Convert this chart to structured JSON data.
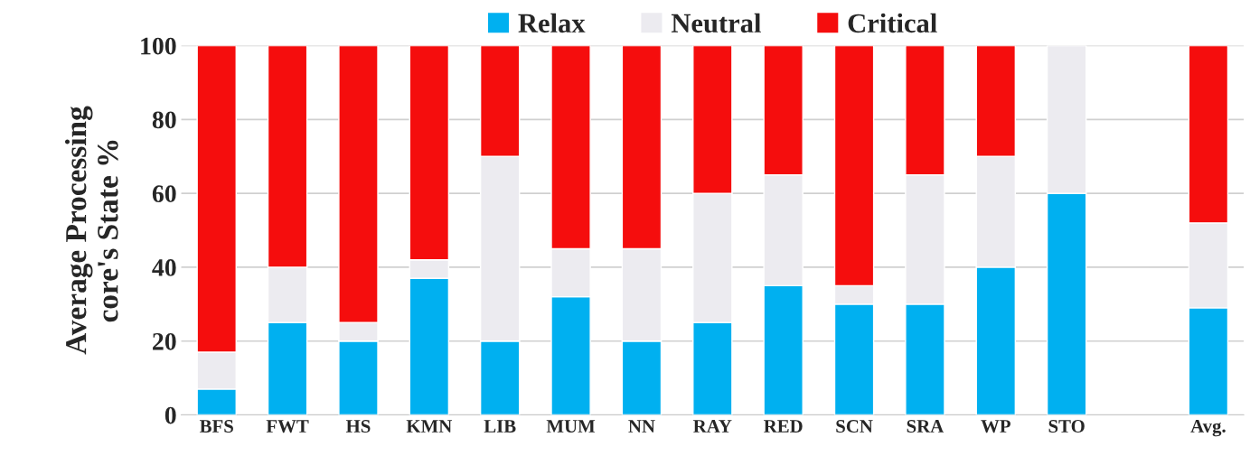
{
  "chart_data": {
    "type": "bar",
    "stacked": true,
    "ylabel": "Average Processing\ncore's State %",
    "categories": [
      "BFS",
      "FWT",
      "HS",
      "KMN",
      "LIB",
      "MUM",
      "NN",
      "RAY",
      "RED",
      "SCN",
      "SRA",
      "WP",
      "STO",
      null,
      "Avg."
    ],
    "series": [
      {
        "name": "Relax",
        "color": "#00b0f0",
        "values": [
          7,
          25,
          20,
          37,
          20,
          32,
          20,
          25,
          35,
          30,
          30,
          40,
          60,
          null,
          29
        ]
      },
      {
        "name": "Neutral",
        "color": "#ecebf0",
        "values": [
          10,
          15,
          5,
          5,
          50,
          13,
          25,
          35,
          30,
          5,
          35,
          30,
          40,
          null,
          23
        ]
      },
      {
        "name": "Critical",
        "color": "#f50d0d",
        "values": [
          83,
          60,
          75,
          58,
          30,
          55,
          55,
          40,
          35,
          65,
          35,
          30,
          null,
          null,
          48
        ]
      }
    ],
    "ylim": [
      0,
      100
    ],
    "yticks": [
      0,
      20,
      40,
      60,
      80,
      100
    ],
    "grid": "y",
    "legend": "top"
  }
}
